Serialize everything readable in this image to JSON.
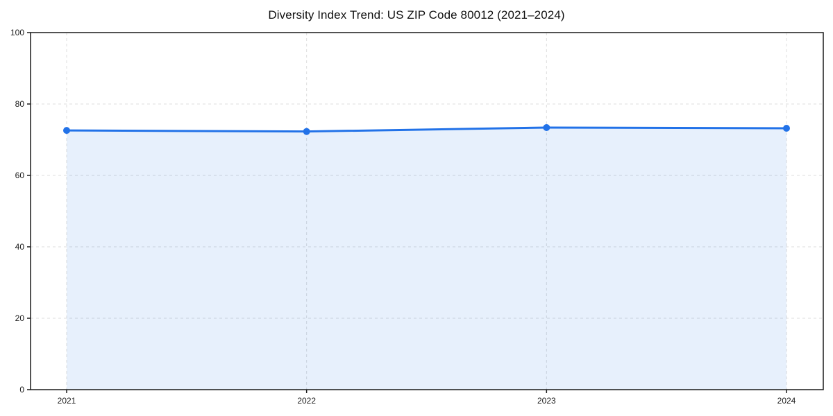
{
  "chart_data": {
    "type": "area",
    "title": "Diversity Index Trend: US ZIP Code 80012 (2021–2024)",
    "categories": [
      "2021",
      "2022",
      "2023",
      "2024"
    ],
    "series": [
      {
        "name": "Diversity Index",
        "values": [
          72.6,
          72.3,
          73.4,
          73.2
        ]
      }
    ],
    "xlabel": "",
    "ylabel": "",
    "ylim": [
      0,
      100
    ],
    "yticks": [
      0,
      20,
      40,
      60,
      80,
      100
    ],
    "grid": true,
    "grid_style": "dashed",
    "legend": false,
    "marker": "circle",
    "colors": {
      "line": "#2272e8",
      "fill": "#2272e8",
      "fill_opacity": 0.11,
      "grid": "#dcdcdc",
      "spine": "#1a1a1a",
      "tick_label": "#1a1a1a",
      "title": "#111111",
      "background": "#ffffff"
    }
  }
}
